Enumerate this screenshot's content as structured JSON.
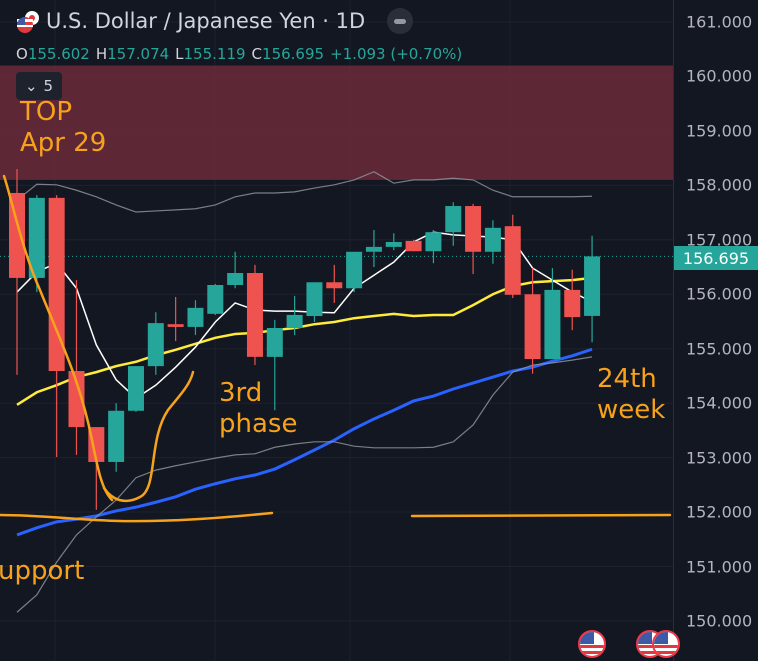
{
  "header": {
    "title": "U.S. Dollar / Japanese Yen · 1D",
    "ohlc": {
      "o_label": "O",
      "o": "155.602",
      "h_label": "H",
      "h": "157.074",
      "l_label": "L",
      "l": "155.119",
      "c_label": "C",
      "c": "156.695",
      "change": "+1.093 (+0.70%)"
    },
    "indicators_collapsed_count": "5",
    "icons": [
      "usd-jpy-flag-icon",
      "minus-icon",
      "chevron-down-icon"
    ]
  },
  "annotations": {
    "top_line1": "TOP",
    "top_line2": "Apr 29",
    "phase_line1": "3rd",
    "phase_line2": "phase",
    "week_line1": "24th",
    "week_line2": "week",
    "support": "upport"
  },
  "colors": {
    "up": "#26a69a",
    "down": "#ef5350",
    "ma_yellow": "#ffeb3b",
    "ma_blue": "#2962ff",
    "ma_white": "#ffffff",
    "bands": "#9598a1",
    "zone": "#6b2a3a",
    "drawing": "#f7a21b"
  },
  "chart_data": {
    "type": "candlestick",
    "timeframe": "1D",
    "ylim": [
      150,
      161
    ],
    "y_ticks": [
      "161.000",
      "160.000",
      "159.000",
      "158.000",
      "157.000",
      "156.000",
      "155.000",
      "154.000",
      "153.000",
      "152.000",
      "151.000",
      "150.000"
    ],
    "y_tick_values": [
      161,
      160,
      159,
      158,
      157,
      156,
      155,
      154,
      153,
      152,
      151,
      150
    ],
    "last_price": "156.695",
    "last_price_value": 156.695,
    "grid": true,
    "candles": [
      [
        157.86,
        158.3,
        154.52,
        156.3
      ],
      [
        156.3,
        157.82,
        156.04,
        157.77
      ],
      [
        157.77,
        157.82,
        153.01,
        154.59
      ],
      [
        154.59,
        156.26,
        153.05,
        153.56
      ],
      [
        153.56,
        153.56,
        152.04,
        152.92
      ],
      [
        152.92,
        154.0,
        152.74,
        153.86
      ],
      [
        153.86,
        154.68,
        153.84,
        154.68
      ],
      [
        154.68,
        155.67,
        154.52,
        155.47
      ],
      [
        155.45,
        155.95,
        155.14,
        155.4
      ],
      [
        155.4,
        155.89,
        155.25,
        155.75
      ],
      [
        155.64,
        156.19,
        155.62,
        156.17
      ],
      [
        156.17,
        156.78,
        156.11,
        156.39
      ],
      [
        156.39,
        156.54,
        154.7,
        154.85
      ],
      [
        154.85,
        155.53,
        153.87,
        155.38
      ],
      [
        155.38,
        155.97,
        155.25,
        155.62
      ],
      [
        155.6,
        156.22,
        155.49,
        156.22
      ],
      [
        156.22,
        156.54,
        155.84,
        156.11
      ],
      [
        156.11,
        156.78,
        156.04,
        156.78
      ],
      [
        156.78,
        157.18,
        156.5,
        156.87
      ],
      [
        156.87,
        157.12,
        156.81,
        156.96
      ],
      [
        156.98,
        157.0,
        156.79,
        156.79
      ],
      [
        156.79,
        157.18,
        156.57,
        157.14
      ],
      [
        157.14,
        157.69,
        156.89,
        157.62
      ],
      [
        157.62,
        157.66,
        156.37,
        156.78
      ],
      [
        156.78,
        157.36,
        156.56,
        157.22
      ],
      [
        157.25,
        157.46,
        155.93,
        155.99
      ],
      [
        156.0,
        156.48,
        154.54,
        154.81
      ],
      [
        154.81,
        156.48,
        154.81,
        156.08
      ],
      [
        156.08,
        156.45,
        155.34,
        155.58
      ],
      [
        155.602,
        157.074,
        155.119,
        156.695
      ]
    ],
    "series": [
      {
        "color": "#ffeb3b",
        "values": [
          153.97,
          154.2,
          154.33,
          154.48,
          154.57,
          154.68,
          154.76,
          154.88,
          154.98,
          155.09,
          155.2,
          155.27,
          155.29,
          155.34,
          155.38,
          155.45,
          155.49,
          155.56,
          155.6,
          155.64,
          155.6,
          155.62,
          155.62,
          155.8,
          156.0,
          156.15,
          156.22,
          156.24,
          156.26,
          156.3
        ]
      },
      {
        "color": "#2962ff",
        "values": [
          151.58,
          151.71,
          151.82,
          151.87,
          151.93,
          152.02,
          152.09,
          152.18,
          152.28,
          152.42,
          152.52,
          152.61,
          152.68,
          152.79,
          152.96,
          153.14,
          153.32,
          153.53,
          153.71,
          153.87,
          154.04,
          154.13,
          154.26,
          154.37,
          154.48,
          154.59,
          154.66,
          154.77,
          154.87,
          154.99
        ]
      },
      {
        "color": "#ffffff",
        "values": [
          156.04,
          156.41,
          156.57,
          156.11,
          155.07,
          154.43,
          154.09,
          154.33,
          154.66,
          155.03,
          155.49,
          155.84,
          155.71,
          155.69,
          155.69,
          155.67,
          155.66,
          156.11,
          156.35,
          156.59,
          156.96,
          157.14,
          157.09,
          157.07,
          157.05,
          157.0,
          156.48,
          156.26,
          156.04,
          155.86
        ]
      },
      {
        "color": "#9598a1",
        "values": [
          157.73,
          158.02,
          158.01,
          157.91,
          157.79,
          157.64,
          157.51,
          157.53,
          157.55,
          157.57,
          157.64,
          157.79,
          157.86,
          157.86,
          157.88,
          157.95,
          158.01,
          158.1,
          158.25,
          158.04,
          158.1,
          158.1,
          158.13,
          158.1,
          157.91,
          157.79,
          157.79,
          157.79,
          157.79,
          157.8
        ]
      },
      {
        "color": "#9598a1",
        "values": [
          150.16,
          150.48,
          151.08,
          151.58,
          151.91,
          152.22,
          152.63,
          152.77,
          152.85,
          152.92,
          152.99,
          153.05,
          153.07,
          153.19,
          153.25,
          153.29,
          153.29,
          153.21,
          153.18,
          153.18,
          153.18,
          153.19,
          153.29,
          153.6,
          154.15,
          154.57,
          154.7,
          154.74,
          154.79,
          154.85
        ]
      }
    ],
    "zone": {
      "from": 158.1,
      "to": 160.2
    },
    "horizontal_levels": [
      152.0
    ]
  }
}
